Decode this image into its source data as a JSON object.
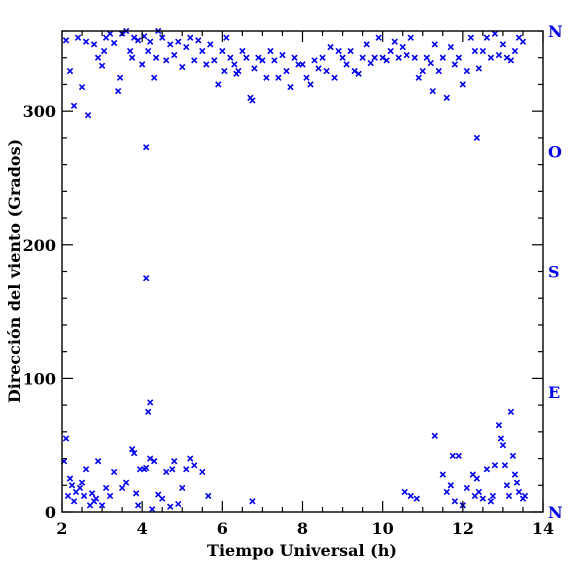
{
  "chart_data": {
    "type": "scatter",
    "xlabel": "Tiempo Universal (h)",
    "ylabel": "Dirección del viento (Grados)",
    "xlim": [
      2,
      14
    ],
    "ylim": [
      0,
      360
    ],
    "xticks": [
      2,
      4,
      6,
      8,
      10,
      12,
      14
    ],
    "yticks": [
      0,
      100,
      200,
      300
    ],
    "grid": false,
    "marker": "x",
    "marker_color": "#0000ee",
    "right_axis": {
      "labels": [
        {
          "text": "N",
          "value": 360
        },
        {
          "text": "O",
          "value": 270
        },
        {
          "text": "S",
          "value": 180
        },
        {
          "text": "E",
          "value": 90
        },
        {
          "text": "N",
          "value": 0
        }
      ],
      "color": "#0000ee"
    },
    "points": [
      [
        2.05,
        38
      ],
      [
        2.1,
        55
      ],
      [
        2.15,
        12
      ],
      [
        2.2,
        25
      ],
      [
        2.25,
        20
      ],
      [
        2.3,
        8
      ],
      [
        2.35,
        15
      ],
      [
        2.45,
        18
      ],
      [
        2.5,
        22
      ],
      [
        2.55,
        12
      ],
      [
        2.6,
        32
      ],
      [
        2.7,
        5
      ],
      [
        2.75,
        14
      ],
      [
        2.8,
        8
      ],
      [
        2.85,
        10
      ],
      [
        2.9,
        38
      ],
      [
        3.0,
        5
      ],
      [
        3.1,
        18
      ],
      [
        3.2,
        12
      ],
      [
        3.3,
        30
      ],
      [
        3.5,
        18
      ],
      [
        3.6,
        22
      ],
      [
        3.75,
        47
      ],
      [
        3.8,
        44
      ],
      [
        3.85,
        14
      ],
      [
        3.9,
        5
      ],
      [
        3.95,
        32
      ],
      [
        4.05,
        32
      ],
      [
        4.1,
        33
      ],
      [
        4.2,
        40
      ],
      [
        4.25,
        2
      ],
      [
        4.3,
        38
      ],
      [
        4.4,
        13
      ],
      [
        4.5,
        10
      ],
      [
        4.6,
        30
      ],
      [
        4.7,
        4
      ],
      [
        4.75,
        32
      ],
      [
        4.8,
        38
      ],
      [
        4.9,
        6
      ],
      [
        5.0,
        18
      ],
      [
        5.1,
        32
      ],
      [
        5.2,
        40
      ],
      [
        5.3,
        35
      ],
      [
        5.5,
        30
      ],
      [
        5.65,
        12
      ],
      [
        6.75,
        8
      ],
      [
        4.1,
        273
      ],
      [
        4.1,
        175
      ],
      [
        4.15,
        75
      ],
      [
        4.2,
        82
      ],
      [
        2.1,
        353
      ],
      [
        2.2,
        330
      ],
      [
        2.3,
        304
      ],
      [
        2.4,
        355
      ],
      [
        2.5,
        318
      ],
      [
        2.6,
        352
      ],
      [
        2.65,
        297
      ],
      [
        2.8,
        350
      ],
      [
        2.9,
        340
      ],
      [
        3.0,
        334
      ],
      [
        3.05,
        345
      ],
      [
        3.1,
        355
      ],
      [
        3.2,
        358
      ],
      [
        3.3,
        351
      ],
      [
        3.4,
        315
      ],
      [
        3.45,
        325
      ],
      [
        3.5,
        358
      ],
      [
        3.6,
        360
      ],
      [
        3.7,
        345
      ],
      [
        3.75,
        340
      ],
      [
        3.8,
        355
      ],
      [
        3.9,
        353
      ],
      [
        4.0,
        335
      ],
      [
        4.05,
        356
      ],
      [
        4.15,
        345
      ],
      [
        4.2,
        352
      ],
      [
        4.3,
        325
      ],
      [
        4.35,
        340
      ],
      [
        4.4,
        360
      ],
      [
        4.5,
        355
      ],
      [
        4.6,
        338
      ],
      [
        4.7,
        350
      ],
      [
        4.8,
        342
      ],
      [
        4.9,
        352
      ],
      [
        5.0,
        333
      ],
      [
        5.1,
        348
      ],
      [
        5.2,
        355
      ],
      [
        5.3,
        338
      ],
      [
        5.4,
        353
      ],
      [
        5.5,
        345
      ],
      [
        5.6,
        335
      ],
      [
        5.7,
        350
      ],
      [
        5.8,
        338
      ],
      [
        5.9,
        320
      ],
      [
        6.0,
        345
      ],
      [
        6.05,
        330
      ],
      [
        6.1,
        355
      ],
      [
        6.2,
        340
      ],
      [
        6.3,
        335
      ],
      [
        6.35,
        328
      ],
      [
        6.4,
        330
      ],
      [
        6.5,
        345
      ],
      [
        6.6,
        340
      ],
      [
        6.7,
        310
      ],
      [
        6.75,
        308
      ],
      [
        6.8,
        332
      ],
      [
        6.9,
        340
      ],
      [
        7.0,
        338
      ],
      [
        7.1,
        325
      ],
      [
        7.2,
        345
      ],
      [
        7.3,
        338
      ],
      [
        7.4,
        325
      ],
      [
        7.5,
        342
      ],
      [
        7.6,
        330
      ],
      [
        7.7,
        318
      ],
      [
        7.8,
        340
      ],
      [
        7.9,
        335
      ],
      [
        8.0,
        335
      ],
      [
        8.1,
        325
      ],
      [
        8.2,
        320
      ],
      [
        8.3,
        338
      ],
      [
        8.4,
        332
      ],
      [
        8.5,
        340
      ],
      [
        8.6,
        330
      ],
      [
        8.7,
        348
      ],
      [
        8.8,
        325
      ],
      [
        8.9,
        345
      ],
      [
        9.0,
        340
      ],
      [
        9.1,
        335
      ],
      [
        9.2,
        345
      ],
      [
        9.3,
        330
      ],
      [
        9.4,
        328
      ],
      [
        9.5,
        340
      ],
      [
        9.6,
        350
      ],
      [
        9.7,
        336
      ],
      [
        9.8,
        340
      ],
      [
        9.9,
        355
      ],
      [
        10.0,
        340
      ],
      [
        10.1,
        338
      ],
      [
        10.2,
        345
      ],
      [
        10.3,
        352
      ],
      [
        10.4,
        340
      ],
      [
        10.5,
        348
      ],
      [
        10.6,
        342
      ],
      [
        10.7,
        355
      ],
      [
        10.8,
        340
      ],
      [
        10.9,
        325
      ],
      [
        11.0,
        330
      ],
      [
        11.1,
        340
      ],
      [
        11.2,
        336
      ],
      [
        11.25,
        315
      ],
      [
        11.3,
        350
      ],
      [
        11.4,
        330
      ],
      [
        11.5,
        340
      ],
      [
        11.6,
        310
      ],
      [
        11.7,
        348
      ],
      [
        11.8,
        335
      ],
      [
        11.9,
        340
      ],
      [
        12.0,
        320
      ],
      [
        12.1,
        330
      ],
      [
        12.2,
        355
      ],
      [
        12.3,
        345
      ],
      [
        12.35,
        280
      ],
      [
        12.4,
        332
      ],
      [
        12.5,
        345
      ],
      [
        12.6,
        355
      ],
      [
        12.7,
        340
      ],
      [
        12.8,
        358
      ],
      [
        12.9,
        342
      ],
      [
        13.0,
        350
      ],
      [
        13.1,
        340
      ],
      [
        13.2,
        338
      ],
      [
        13.3,
        345
      ],
      [
        13.4,
        355
      ],
      [
        13.5,
        352
      ],
      [
        10.55,
        15
      ],
      [
        10.7,
        12
      ],
      [
        10.85,
        10
      ],
      [
        11.3,
        57
      ],
      [
        11.5,
        28
      ],
      [
        11.6,
        15
      ],
      [
        11.7,
        20
      ],
      [
        11.75,
        42
      ],
      [
        11.8,
        8
      ],
      [
        11.9,
        42
      ],
      [
        12.0,
        5
      ],
      [
        12.1,
        18
      ],
      [
        12.25,
        28
      ],
      [
        12.3,
        12
      ],
      [
        12.35,
        25
      ],
      [
        12.4,
        15
      ],
      [
        12.5,
        10
      ],
      [
        12.6,
        32
      ],
      [
        12.7,
        8
      ],
      [
        12.75,
        12
      ],
      [
        12.8,
        35
      ],
      [
        12.9,
        65
      ],
      [
        12.95,
        55
      ],
      [
        13.0,
        50
      ],
      [
        13.05,
        35
      ],
      [
        13.1,
        20
      ],
      [
        13.15,
        12
      ],
      [
        13.2,
        75
      ],
      [
        13.25,
        42
      ],
      [
        13.3,
        28
      ],
      [
        13.35,
        22
      ],
      [
        13.4,
        15
      ],
      [
        13.5,
        10
      ],
      [
        13.55,
        12
      ]
    ]
  }
}
